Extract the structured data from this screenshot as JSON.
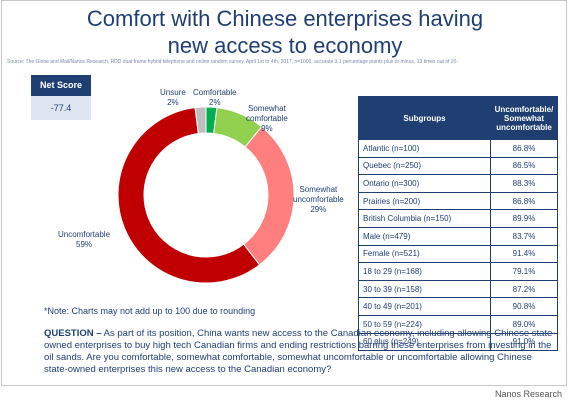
{
  "title_line1": "Comfort with Chinese enterprises having",
  "title_line2": "new access to economy",
  "source": "Source: The Globe and Mail/Nanos Research, RDD dual frame hybrid telephone and online random survey, April 1st to 4th, 2017, n=1000, accurate 3.1 percentage points plus or minus, 19 times out of 20.",
  "net_score": {
    "label": "Net Score",
    "value": "-77.4"
  },
  "colors": {
    "navy": "#1f3f73",
    "uncomfortable": "#c00000",
    "somewhat_uncomfortable": "#ff7f7f",
    "somewhat_comfortable": "#92d050",
    "comfortable": "#00b050",
    "unsure": "#bfbfbf"
  },
  "chart_data": {
    "type": "pie",
    "donut": true,
    "slices": [
      {
        "name": "Comfortable",
        "value": 2,
        "label": "2%",
        "color": "#00b050"
      },
      {
        "name": "Somewhat comfortable",
        "value": 9,
        "label": "9%",
        "color": "#92d050"
      },
      {
        "name": "Somewhat uncomfortable",
        "value": 29,
        "label": "29%",
        "color": "#ff7f7f"
      },
      {
        "name": "Uncomfortable",
        "value": 59,
        "label": "59%",
        "color": "#c00000"
      },
      {
        "name": "Unsure",
        "value": 2,
        "label": "2%",
        "color": "#bfbfbf"
      }
    ]
  },
  "label_text": {
    "unsure": "Unsure",
    "unsure_pct": "2%",
    "comfortable": "Comfortable",
    "comfortable_pct": "2%",
    "somewhat_comfortable_1": "Somewhat",
    "somewhat_comfortable_2": "comfortable",
    "somewhat_comfortable_pct": "9%",
    "somewhat_uncomfortable_1": "Somewhat",
    "somewhat_uncomfortable_2": "uncomfortable",
    "somewhat_uncomfortable_pct": "29%",
    "uncomfortable": "Uncomfortable",
    "uncomfortable_pct": "59%"
  },
  "note": "*Note: Charts may not add up to 100 due to rounding",
  "table": {
    "header_col1": "Subgroups",
    "header_col2": "Uncomfortable/ Somewhat uncomfortable",
    "rows": [
      {
        "group": "Atlantic (n=100)",
        "value": "86.8%"
      },
      {
        "group": "Quebec (n=250)",
        "value": "86.5%"
      },
      {
        "group": "Ontario (n=300)",
        "value": "88.3%"
      },
      {
        "group": "Prairies (n=200)",
        "value": "86.8%"
      },
      {
        "group": "British Columbia (n=150)",
        "value": "89.9%"
      },
      {
        "group": "Male (n=479)",
        "value": "83.7%"
      },
      {
        "group": "Female (n=521)",
        "value": "91.4%"
      },
      {
        "group": "18 to 29 (n=168)",
        "value": "79.1%"
      },
      {
        "group": "30 to 39 (n=158)",
        "value": "87.2%"
      },
      {
        "group": "40 to 49 (n=201)",
        "value": "90.8%"
      },
      {
        "group": "50 to 59 (n=224)",
        "value": "89.0%"
      },
      {
        "group": "60 plus (n=249)",
        "value": "91.0%"
      }
    ]
  },
  "question_label": "QUESTION –",
  "question_text": " As part of its position, China wants new access to the Canadian economy, including allowing Chinese state-owned enterprises to buy high tech Canadian firms and ending restrictions barring these enterprises from investing in the oil sands. Are you comfortable, somewhat comfortable, somewhat uncomfortable or uncomfortable allowing Chinese state-owned enterprises this new access to the Canadian economy?",
  "credit": "Nanos Research"
}
